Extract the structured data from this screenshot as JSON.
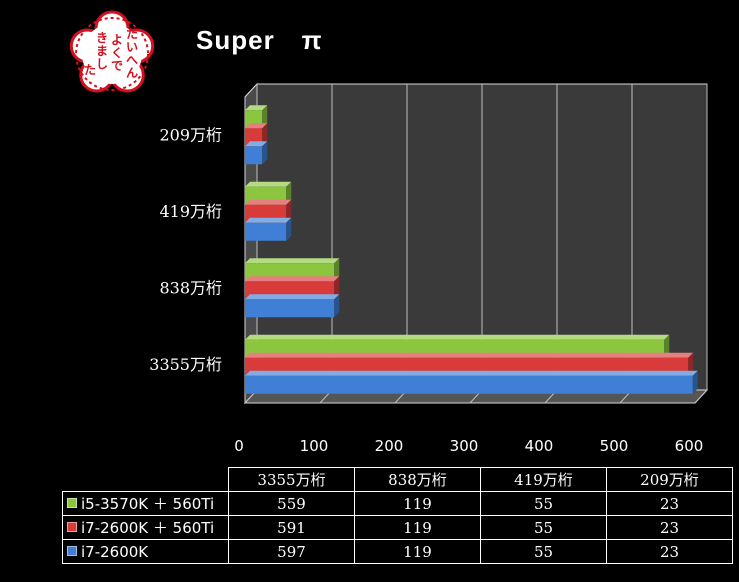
{
  "stamp": {
    "text": "たいへんよくできました",
    "color": "#d4101e"
  },
  "chart_data": {
    "type": "bar",
    "orientation": "horizontal",
    "title": "Super　π",
    "categories": [
      "209万桁",
      "419万桁",
      "838万桁",
      "3355万桁"
    ],
    "series": [
      {
        "name": "i5-3570K + 560Ti",
        "color": "#8cc63f",
        "values": [
          23,
          55,
          119,
          559
        ]
      },
      {
        "name": "i7-2600K + 560Ti",
        "color": "#d93a3a",
        "values": [
          23,
          55,
          119,
          591
        ]
      },
      {
        "name": "i7-2600K",
        "color": "#3f7fd6",
        "values": [
          23,
          55,
          119,
          597
        ]
      }
    ],
    "xlim": [
      0,
      600
    ],
    "xticks": [
      0,
      100,
      200,
      300,
      400,
      500,
      600
    ],
    "grid": true,
    "style": "3d-bars",
    "legend": "data-table-below"
  },
  "table": {
    "header": [
      "3355万桁",
      "838万桁",
      "419万桁",
      "209万桁"
    ],
    "rows": [
      {
        "label": "i5-3570K ＋ 560Ti",
        "color": "#8cc63f",
        "cells": [
          "559",
          "119",
          "55",
          "23"
        ]
      },
      {
        "label": "i7-2600K ＋ 560Ti",
        "color": "#d93a3a",
        "cells": [
          "591",
          "119",
          "55",
          "23"
        ]
      },
      {
        "label": "i7-2600K",
        "color": "#3f7fd6",
        "cells": [
          "597",
          "119",
          "55",
          "23"
        ]
      }
    ]
  }
}
